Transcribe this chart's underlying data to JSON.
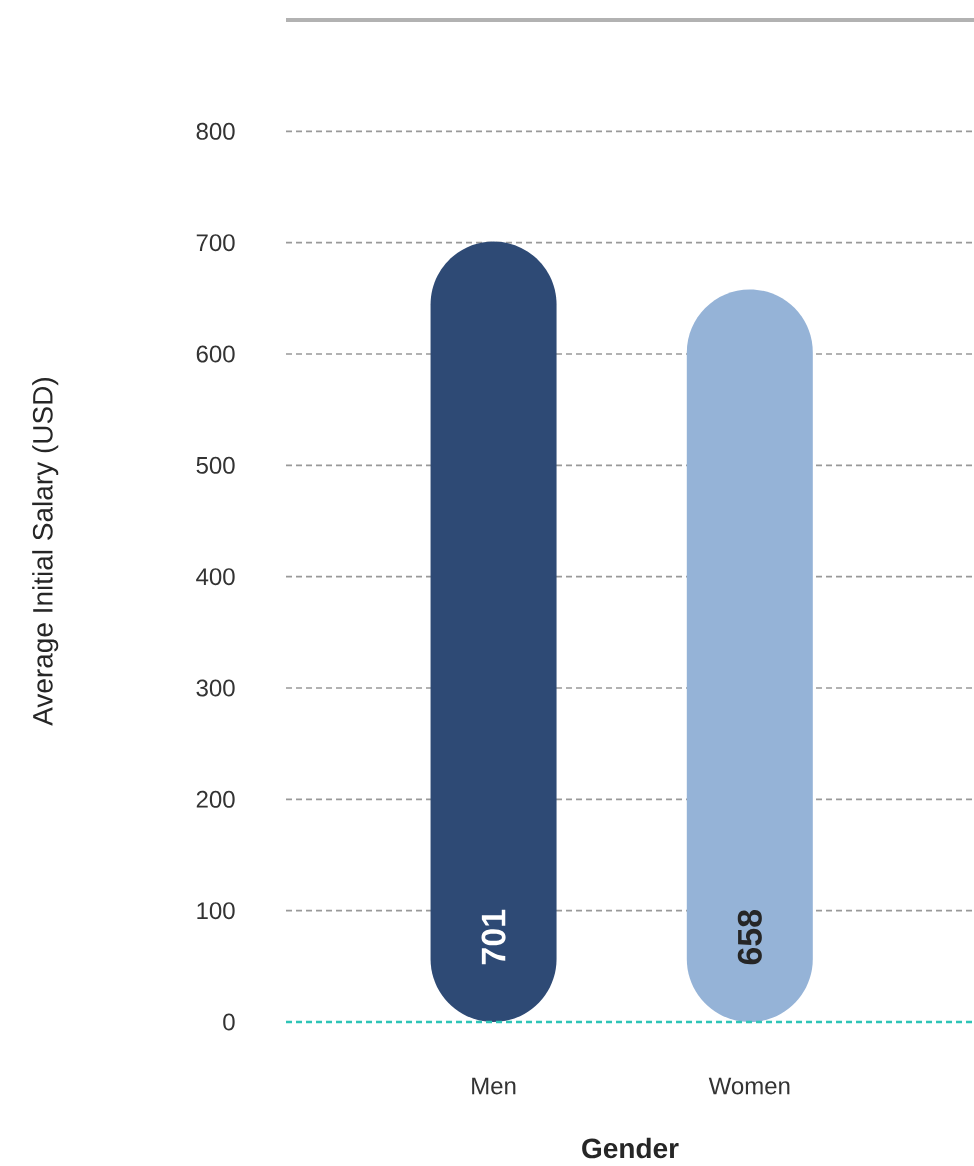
{
  "chart_data": {
    "type": "bar",
    "xlabel": "Gender",
    "ylabel": "Average Initial Salary (USD)",
    "categories": [
      "Men",
      "Women"
    ],
    "values": [
      701,
      658
    ],
    "colors": [
      "#2e4a75",
      "#95b3d7"
    ],
    "ylim": [
      0,
      900
    ],
    "yticks": [
      0,
      100,
      200,
      300,
      400,
      500,
      600,
      700,
      800
    ],
    "grid": "y",
    "data_labels": true,
    "ref_lines": [
      {
        "axis": "y",
        "value": 0,
        "color": "#2ec4b6",
        "line_style": "dashed"
      }
    ]
  }
}
